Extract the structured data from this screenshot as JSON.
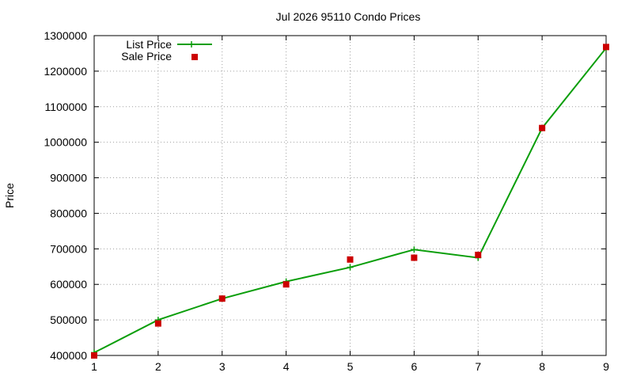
{
  "chart_data": {
    "type": "line",
    "title": "Jul 2026 95110 Condo Prices",
    "xlabel": "",
    "ylabel": "Price",
    "xlim": [
      1,
      9
    ],
    "ylim": [
      400000,
      1300000
    ],
    "xticks": [
      1,
      2,
      3,
      4,
      5,
      6,
      7,
      8,
      9
    ],
    "yticks": [
      400000,
      500000,
      600000,
      700000,
      800000,
      900000,
      1000000,
      1100000,
      1200000,
      1300000
    ],
    "grid": true,
    "legend_position": "top-left",
    "series": [
      {
        "name": "List Price",
        "style": "line+cross",
        "color": "#0a9e0a",
        "x": [
          1,
          2,
          3,
          4,
          5,
          6,
          7,
          8,
          9
        ],
        "values": [
          408000,
          500000,
          560000,
          608000,
          648000,
          698000,
          675000,
          1040000,
          1265000
        ]
      },
      {
        "name": "Sale Price",
        "style": "square-points",
        "color": "#cc0000",
        "x": [
          1,
          2,
          3,
          4,
          5,
          6,
          7,
          8,
          9
        ],
        "values": [
          400000,
          490000,
          560000,
          600000,
          670000,
          675000,
          683000,
          1040000,
          1268000
        ]
      }
    ]
  }
}
